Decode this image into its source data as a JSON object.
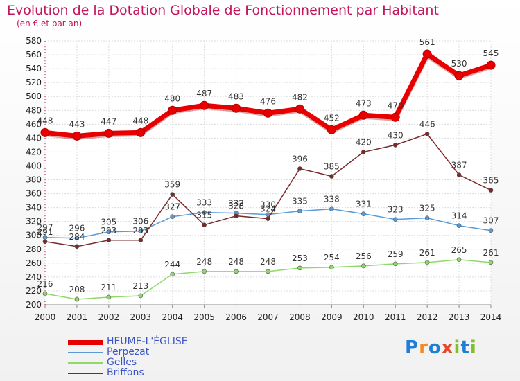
{
  "title": "Evolution de la Dotation Globale de Fonctionnement par Habitant",
  "subtitle": "(en € et par an)",
  "logo": [
    "P",
    "r",
    "o",
    "x",
    "i",
    "t",
    "i"
  ],
  "logo_colors": [
    "#1f7fd6",
    "#f28c1f",
    "#1f7fd6",
    "#e8482a",
    "#7fbf2c",
    "#1f7fd6",
    "#7fbf2c"
  ],
  "chart_data": {
    "type": "line",
    "x": [
      "2000",
      "2001",
      "2002",
      "2003",
      "2004",
      "2005",
      "2006",
      "2007",
      "2008",
      "2009",
      "2010",
      "2011",
      "2012",
      "2013",
      "2014"
    ],
    "ylim": [
      200,
      580
    ],
    "yticks": [
      200,
      220,
      240,
      260,
      280,
      300,
      320,
      340,
      360,
      380,
      400,
      420,
      440,
      460,
      480,
      500,
      520,
      540,
      560,
      580
    ],
    "grid": true,
    "legend_position": "bottom-left",
    "series": [
      {
        "name": "HEUME-L'ÉGLISE",
        "color": "#e80000",
        "values": [
          448,
          443,
          447,
          448,
          480,
          487,
          483,
          476,
          482,
          452,
          473,
          470,
          561,
          530,
          545
        ]
      },
      {
        "name": "Perpezat",
        "color": "#5b9bd5",
        "values": [
          297,
          296,
          305,
          306,
          327,
          333,
          332,
          330,
          335,
          338,
          331,
          323,
          325,
          314,
          307
        ]
      },
      {
        "name": "Gelles",
        "color": "#8fd96b",
        "values": [
          216,
          208,
          211,
          213,
          244,
          248,
          248,
          248,
          253,
          254,
          256,
          259,
          261,
          265,
          261
        ]
      },
      {
        "name": "Briffons",
        "color": "#7a2828",
        "values": [
          291,
          284,
          293,
          293,
          359,
          315,
          328,
          324,
          396,
          385,
          420,
          430,
          446,
          387,
          365
        ]
      }
    ]
  }
}
